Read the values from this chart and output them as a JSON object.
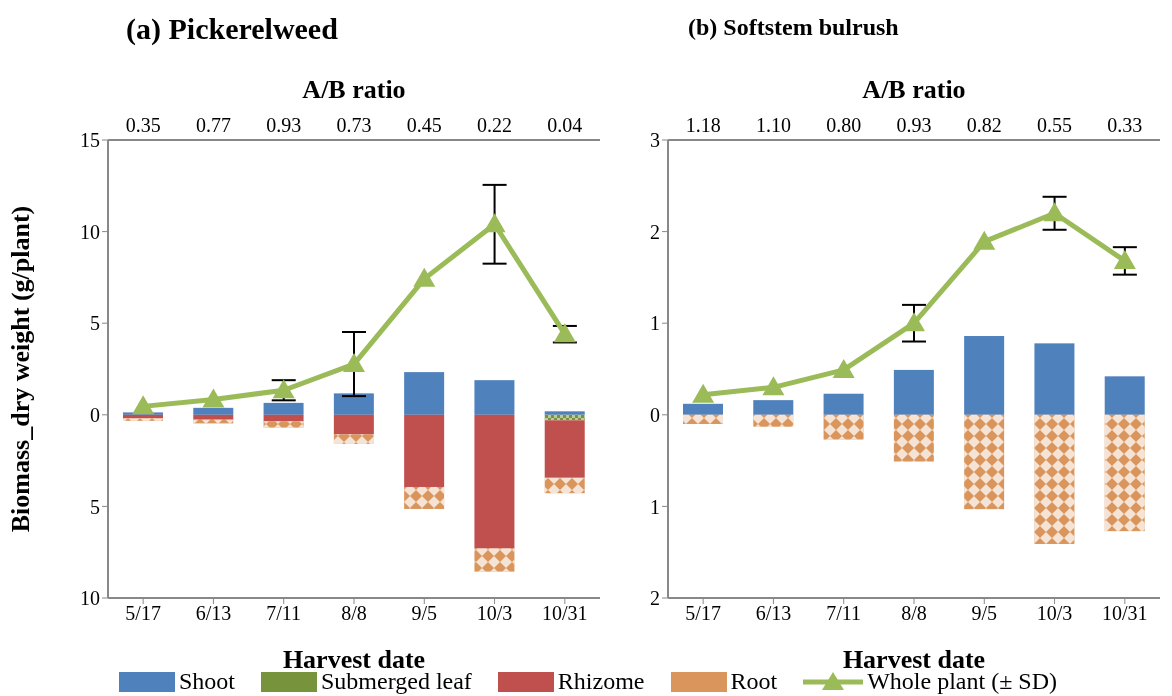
{
  "chart_data": [
    {
      "type": "bar",
      "title": "(a) Pickerelweed",
      "xlabel": "Harvest date",
      "ylabel": "Biomass_dry weight (g/plant)",
      "x2label": "A/B ratio",
      "categories": [
        "5/17",
        "6/13",
        "7/11",
        "8/8",
        "9/5",
        "10/3",
        "10/31"
      ],
      "stacked": true,
      "legend": "bottom",
      "marker": "triangle",
      "series": [
        {
          "name": "Shoot",
          "color": "#4f81bd",
          "values": [
            0.13,
            0.38,
            0.65,
            1.17,
            2.33,
            1.89,
            0.19
          ]
        },
        {
          "name": "Submerged leaf",
          "color": "#77933c",
          "values": [
            null,
            null,
            null,
            null,
            null,
            null,
            -0.3
          ]
        },
        {
          "name": "Rhizome",
          "color": "#c0504d",
          "values": [
            -0.2,
            -0.27,
            -0.36,
            -1.07,
            -3.94,
            -7.3,
            -3.14
          ]
        },
        {
          "name": "Root",
          "color": "#d9955b",
          "values": [
            -0.13,
            -0.2,
            -0.34,
            -0.52,
            -1.2,
            -1.26,
            -0.84
          ]
        },
        {
          "name": "Whole plant (± SD)",
          "type": "line",
          "color": "#9bbb59",
          "values": [
            0.46,
            0.84,
            1.34,
            2.77,
            7.42,
            10.4,
            4.4
          ],
          "errors": [
            null,
            null,
            0.55,
            1.75,
            null,
            2.15,
            0.45
          ]
        }
      ],
      "ylim": [
        -10,
        15
      ],
      "yticks": [
        {
          "value": -10,
          "label": "10"
        },
        {
          "value": -5,
          "label": "5"
        },
        0,
        5,
        10,
        15
      ],
      "annotations": [
        "0.35",
        "0.77",
        "0.93",
        "0.73",
        "0.45",
        "0.22",
        "0.04"
      ]
    },
    {
      "type": "bar",
      "title": "(b) Softstem bulrush",
      "xlabel": "Harvest date",
      "x2label": "A/B ratio",
      "categories": [
        "5/17",
        "6/13",
        "7/11",
        "8/8",
        "9/5",
        "10/3",
        "10/31"
      ],
      "stacked": true,
      "marker": "triangle",
      "series": [
        {
          "color": "#4f81bd",
          "values": [
            0.12,
            0.16,
            0.23,
            0.49,
            0.86,
            0.78,
            0.42
          ]
        },
        {
          "color": "#77933c",
          "values": [
            null,
            null,
            null,
            null,
            null,
            null,
            null
          ]
        },
        {
          "color": "#c0504d",
          "values": [
            null,
            null,
            null,
            null,
            null,
            null,
            null
          ]
        },
        {
          "color": "#d9955b",
          "values": [
            -0.1,
            -0.13,
            -0.27,
            -0.51,
            -1.03,
            -1.41,
            -1.27
          ]
        },
        {
          "type": "line",
          "color": "#9bbb59",
          "values": [
            0.22,
            0.3,
            0.49,
            1.0,
            1.89,
            2.2,
            1.68
          ],
          "errors": [
            null,
            null,
            null,
            0.2,
            null,
            0.18,
            0.15
          ]
        }
      ],
      "ylim": [
        -2,
        3
      ],
      "yticks": [
        {
          "value": -2,
          "label": "2"
        },
        {
          "value": -1,
          "label": "1"
        },
        0,
        1,
        2,
        3
      ],
      "annotations": [
        "1.18",
        "1.10",
        "0.80",
        "0.93",
        "0.82",
        "0.55",
        "0.33"
      ]
    }
  ]
}
